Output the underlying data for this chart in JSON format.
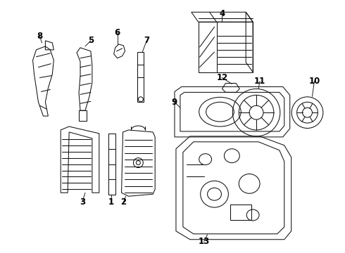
{
  "background": "#ffffff",
  "line_color": "#111111",
  "label_color": "#000000",
  "label_fontsize": 8.5,
  "label_fontweight": "bold"
}
